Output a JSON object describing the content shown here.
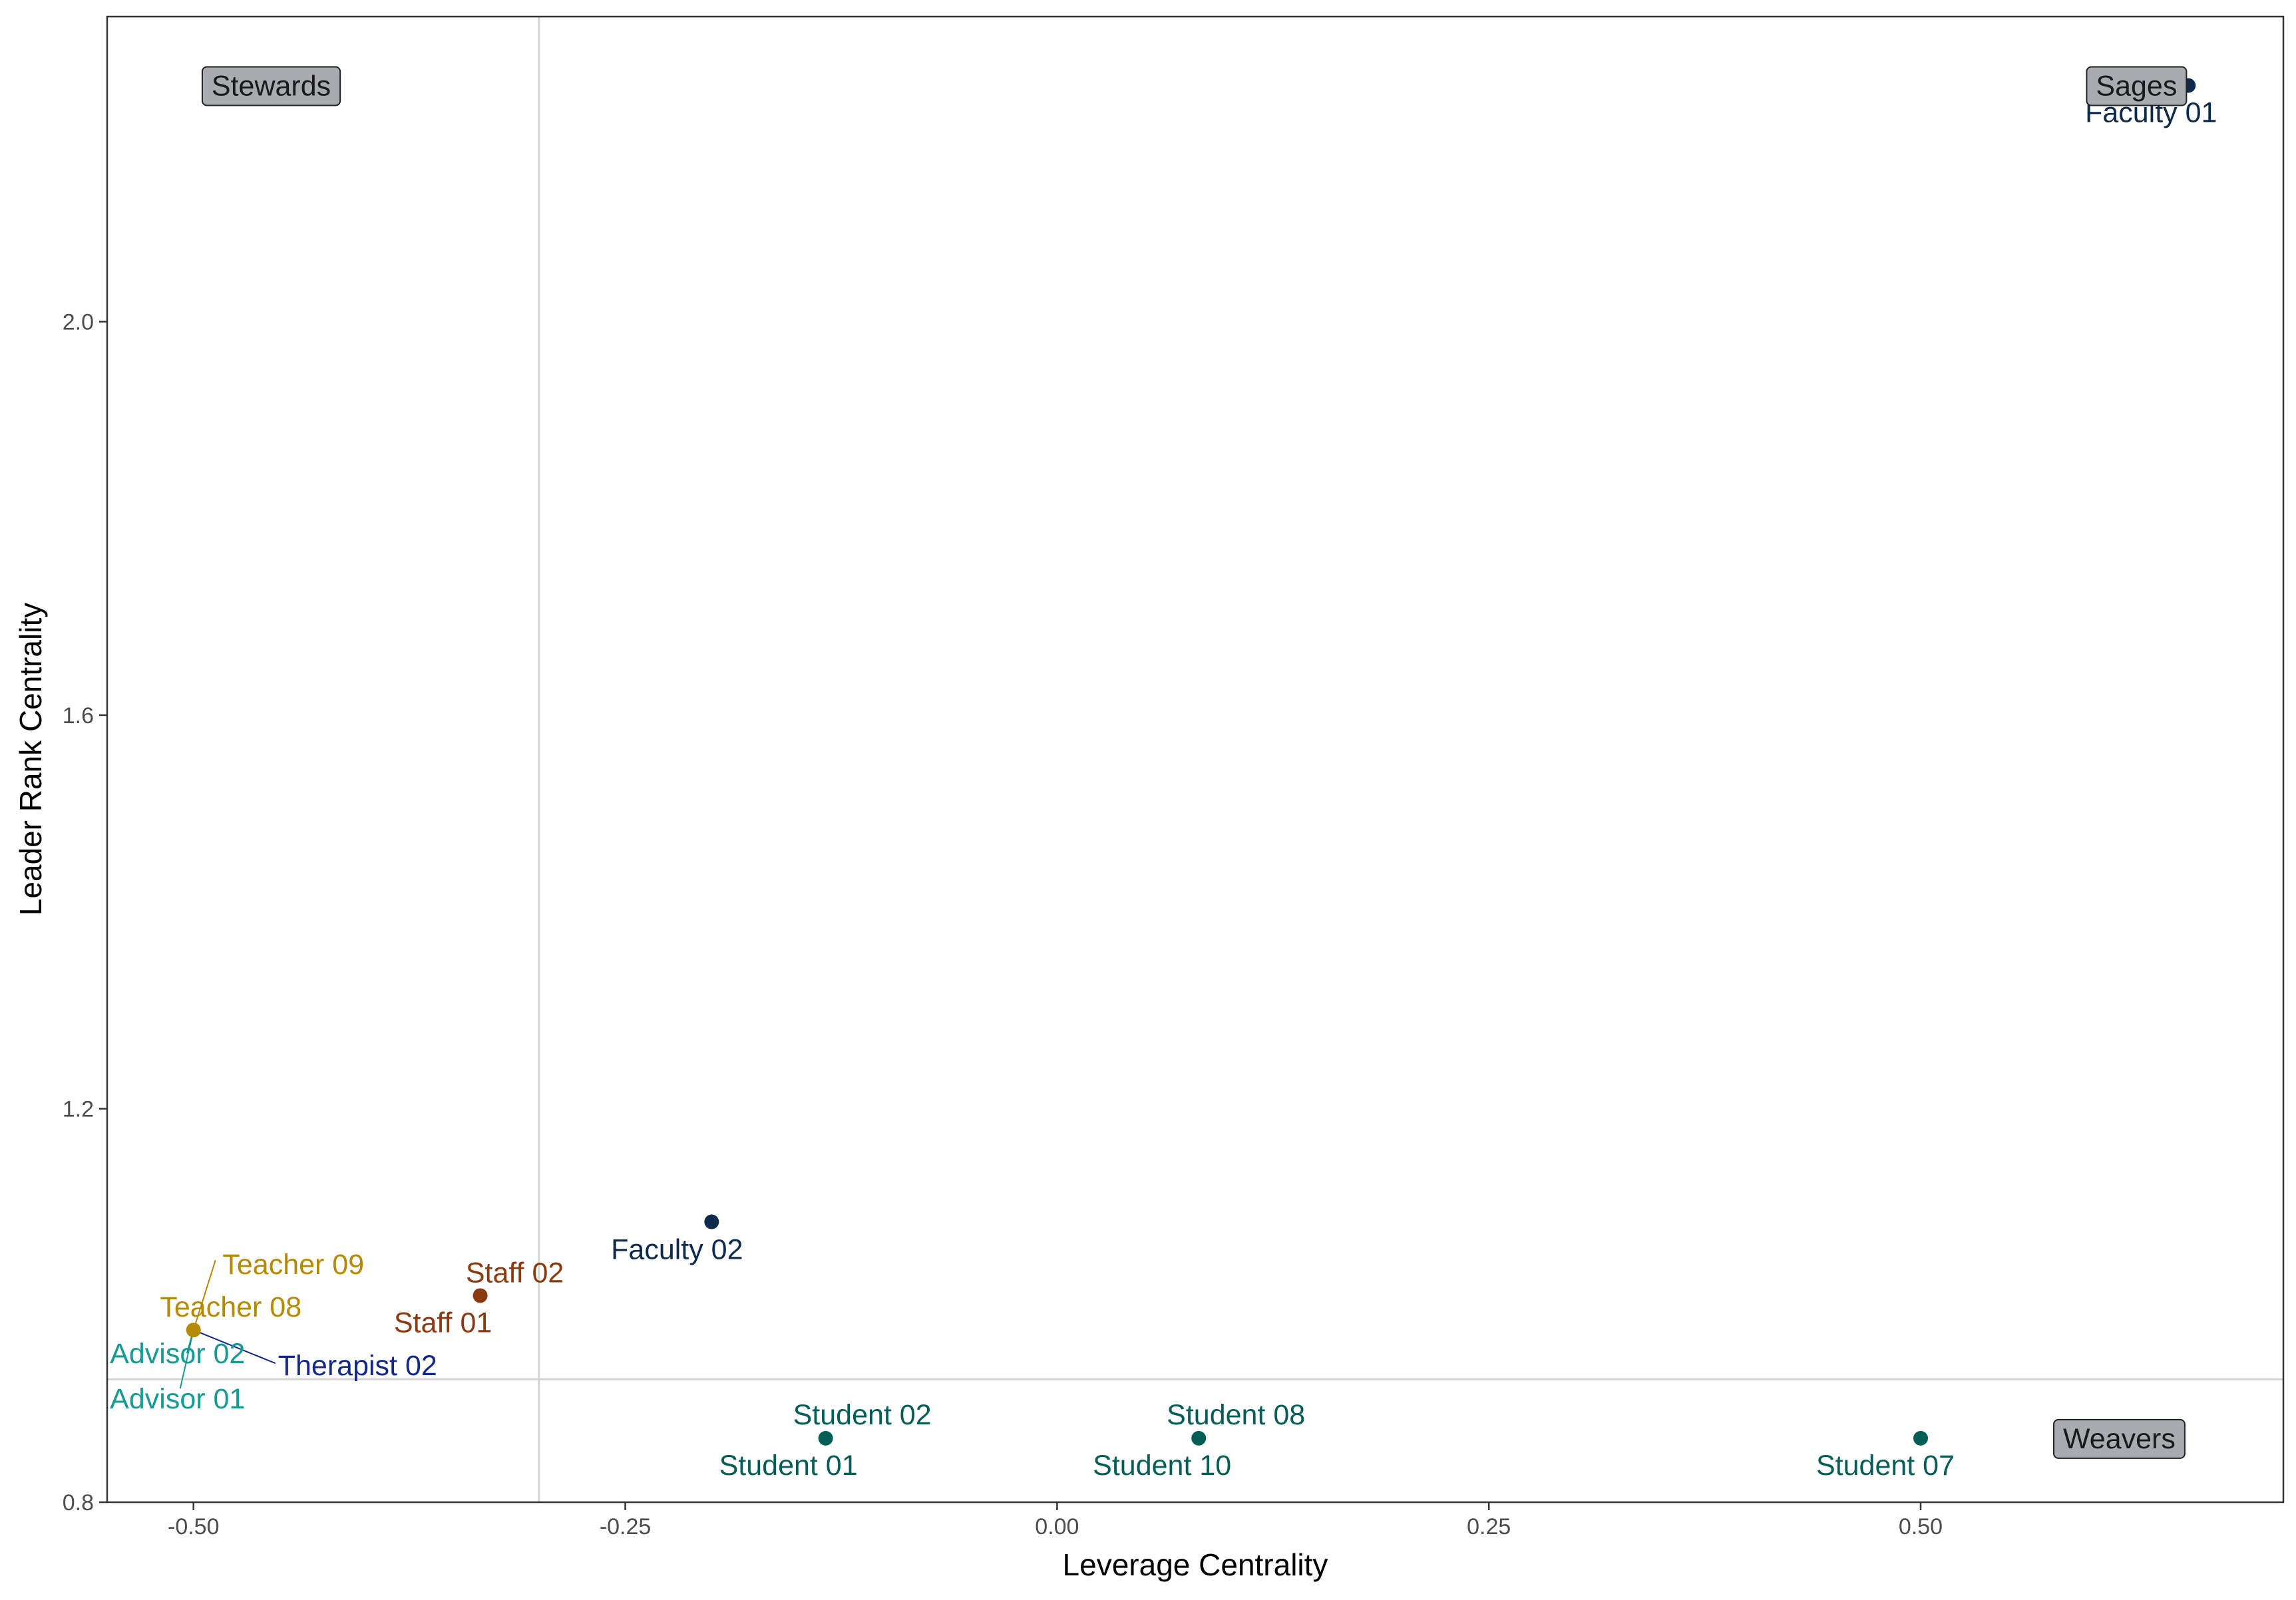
{
  "chart_data": {
    "type": "scatter",
    "title": "",
    "xlabel": "Leverage Centrality",
    "ylabel": "Leader Rank Centrality",
    "xlim": [
      -0.55,
      0.71
    ],
    "ylim": [
      0.8,
      2.31
    ],
    "xticks": [
      -0.5,
      -0.25,
      0.0,
      0.25,
      0.5
    ],
    "xtick_labels": [
      "-0.50",
      "-0.25",
      "0.00",
      "0.25",
      "0.50"
    ],
    "yticks": [
      0.8,
      1.2,
      1.6,
      2.0
    ],
    "ytick_labels": [
      "0.8",
      "1.2",
      "1.6",
      "2.0"
    ],
    "grid": false,
    "reference_lines": {
      "x": -0.3,
      "y": 0.925
    },
    "points": [
      {
        "label": "Faculty 01",
        "x": 0.655,
        "y": 2.24,
        "color": "#0d2a4d"
      },
      {
        "label": "Faculty 02",
        "x": -0.2,
        "y": 1.085,
        "color": "#0d2a4d"
      },
      {
        "label": "Staff 01",
        "x": -0.334,
        "y": 1.01,
        "color": "#8b3a0f"
      },
      {
        "label": "Staff 02",
        "x": -0.334,
        "y": 1.01,
        "color": "#8b3a0f"
      },
      {
        "label": "Teacher 08",
        "x": -0.5,
        "y": 0.975,
        "color": "#b58a00"
      },
      {
        "label": "Teacher 09",
        "x": -0.5,
        "y": 0.975,
        "color": "#b58a00"
      },
      {
        "label": "Advisor 01",
        "x": -0.5,
        "y": 0.975,
        "color": "#159b93"
      },
      {
        "label": "Advisor 02",
        "x": -0.5,
        "y": 0.975,
        "color": "#159b93"
      },
      {
        "label": "Therapist 02",
        "x": -0.5,
        "y": 0.975,
        "color": "#14288c"
      },
      {
        "label": "Student 01",
        "x": -0.134,
        "y": 0.865,
        "color": "#045e58"
      },
      {
        "label": "Student 02",
        "x": -0.134,
        "y": 0.865,
        "color": "#045e58"
      },
      {
        "label": "Student 08",
        "x": 0.082,
        "y": 0.865,
        "color": "#045e58"
      },
      {
        "label": "Student 10",
        "x": 0.082,
        "y": 0.865,
        "color": "#045e58"
      },
      {
        "label": "Student 07",
        "x": 0.5,
        "y": 0.865,
        "color": "#045e58"
      }
    ],
    "quadrant_labels": [
      {
        "label": "Stewards",
        "x": -0.455,
        "y": 2.24
      },
      {
        "label": "Sages",
        "x": 0.625,
        "y": 2.24
      },
      {
        "label": "Weavers",
        "x": 0.615,
        "y": 0.865
      }
    ]
  }
}
